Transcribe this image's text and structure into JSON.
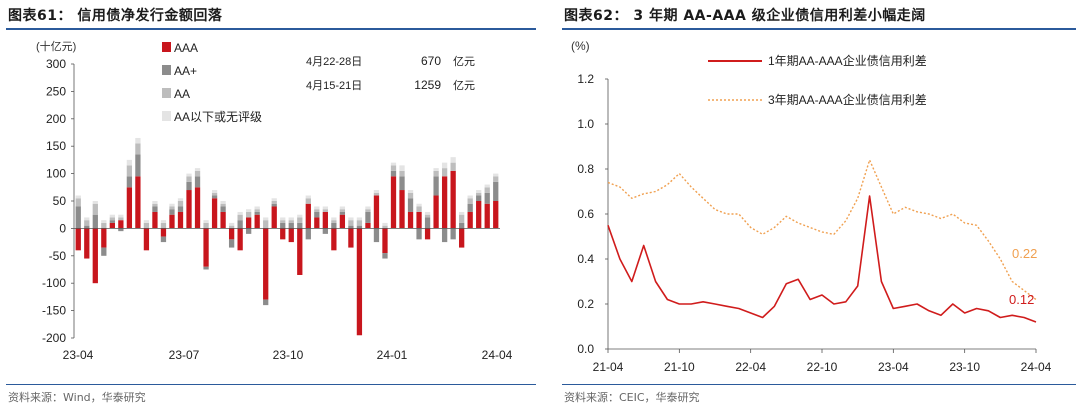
{
  "left_panel": {
    "figure_title": "图表61： 信用债净发行金额回落",
    "source": "资料来源：Wind，华泰研究",
    "annotation": {
      "rows": [
        {
          "period": "4月22-28日",
          "value": "670",
          "unit": "亿元"
        },
        {
          "period": "4月15-21日",
          "value": "1259",
          "unit": "亿元"
        }
      ]
    }
  },
  "right_panel": {
    "figure_title": "图表62： 3 年期 AA-AAA 级企业债信用利差小幅走阔",
    "source": "资料来源：CEIC，华泰研究"
  },
  "colors": {
    "AAA": "#c8161d",
    "AA+": "#8c8c8c",
    "AA": "#bdbdbd",
    "AA_below": "#e4e4e4",
    "spread_1y": "#d01c1c",
    "spread_3y": "#f0a050",
    "rule": "#2b5a9b"
  },
  "chart_data": [
    {
      "type": "bar",
      "stacked": true,
      "ylabel": "(十亿元)",
      "ylim": [
        -200,
        300
      ],
      "yticks": [
        "300",
        "250",
        "200",
        "150",
        "100",
        "50",
        "0",
        "-50",
        "-100",
        "-150",
        "-200"
      ],
      "xtick_labels": [
        "23-04",
        "23-07",
        "23-10",
        "24-01",
        "24-04"
      ],
      "legend_position": "top-left",
      "series": [
        {
          "name": "AAA",
          "values": [
            -40,
            -55,
            -100,
            -35,
            10,
            15,
            75,
            95,
            -40,
            30,
            -15,
            25,
            30,
            70,
            75,
            -70,
            55,
            30,
            -20,
            -40,
            20,
            25,
            -130,
            40,
            -20,
            -25,
            -85,
            45,
            20,
            30,
            -40,
            25,
            -35,
            -195,
            10,
            60,
            -45,
            95,
            70,
            30,
            30,
            -20,
            60,
            95,
            105,
            -35,
            30,
            50,
            45,
            50
          ]
        },
        {
          "name": "AA+",
          "values": [
            40,
            5,
            25,
            -15,
            5,
            -5,
            20,
            40,
            0,
            10,
            -10,
            10,
            10,
            15,
            20,
            -5,
            5,
            10,
            -15,
            15,
            -10,
            5,
            -10,
            5,
            10,
            10,
            10,
            -20,
            10,
            -10,
            10,
            5,
            5,
            5,
            20,
            -25,
            -10,
            10,
            25,
            25,
            -20,
            20,
            35,
            -25,
            -20,
            10,
            15,
            10,
            20,
            35
          ]
        },
        {
          "name": "AA",
          "values": [
            15,
            10,
            20,
            10,
            5,
            5,
            20,
            20,
            10,
            5,
            10,
            5,
            10,
            10,
            10,
            10,
            5,
            5,
            5,
            10,
            10,
            5,
            15,
            5,
            5,
            5,
            10,
            10,
            5,
            5,
            5,
            5,
            10,
            10,
            5,
            5,
            5,
            10,
            10,
            10,
            10,
            5,
            10,
            15,
            15,
            15,
            10,
            5,
            10,
            10
          ]
        },
        {
          "name": "AA以下或无评级",
          "values": [
            5,
            5,
            5,
            5,
            5,
            5,
            10,
            10,
            5,
            5,
            5,
            5,
            5,
            5,
            5,
            5,
            5,
            5,
            5,
            5,
            5,
            5,
            5,
            5,
            5,
            5,
            5,
            5,
            5,
            5,
            5,
            5,
            5,
            5,
            5,
            5,
            5,
            5,
            10,
            5,
            5,
            5,
            5,
            10,
            10,
            5,
            5,
            5,
            5,
            5
          ]
        }
      ]
    },
    {
      "type": "line",
      "ylabel": "(%)",
      "ylim": [
        0.0,
        1.2
      ],
      "yticks": [
        "1.2",
        "1.0",
        "0.8",
        "0.6",
        "0.4",
        "0.2",
        "0.0"
      ],
      "xtick_labels": [
        "21-04",
        "21-10",
        "22-04",
        "22-10",
        "23-04",
        "23-10",
        "24-04"
      ],
      "x": [
        "21-04",
        "21-05",
        "21-06",
        "21-07",
        "21-08",
        "21-09",
        "21-10",
        "21-11",
        "21-12",
        "22-01",
        "22-02",
        "22-03",
        "22-04",
        "22-05",
        "22-06",
        "22-07",
        "22-08",
        "22-09",
        "22-10",
        "22-11",
        "22-12",
        "23-01",
        "23-02",
        "23-03",
        "23-04",
        "23-05",
        "23-06",
        "23-07",
        "23-08",
        "23-09",
        "23-10",
        "23-11",
        "23-12",
        "24-01",
        "24-02",
        "24-03",
        "24-04"
      ],
      "legend_position": "top-right",
      "series": [
        {
          "name": "1年期AA-AAA企业债信用利差",
          "values": [
            0.55,
            0.4,
            0.3,
            0.46,
            0.3,
            0.22,
            0.2,
            0.2,
            0.21,
            0.2,
            0.19,
            0.18,
            0.16,
            0.14,
            0.19,
            0.29,
            0.31,
            0.22,
            0.24,
            0.2,
            0.21,
            0.28,
            0.68,
            0.3,
            0.18,
            0.19,
            0.2,
            0.17,
            0.15,
            0.2,
            0.16,
            0.18,
            0.17,
            0.14,
            0.15,
            0.14,
            0.12
          ]
        },
        {
          "name": "3年期AA-AAA企业债信用利差",
          "values": [
            0.74,
            0.72,
            0.67,
            0.69,
            0.7,
            0.73,
            0.78,
            0.72,
            0.67,
            0.62,
            0.6,
            0.6,
            0.54,
            0.51,
            0.54,
            0.59,
            0.56,
            0.54,
            0.52,
            0.51,
            0.57,
            0.67,
            0.84,
            0.72,
            0.6,
            0.63,
            0.61,
            0.6,
            0.58,
            0.6,
            0.56,
            0.55,
            0.48,
            0.4,
            0.3,
            0.26,
            0.22
          ]
        }
      ],
      "end_labels": {
        "spread_1y": "0.12",
        "spread_3y": "0.22"
      }
    }
  ]
}
